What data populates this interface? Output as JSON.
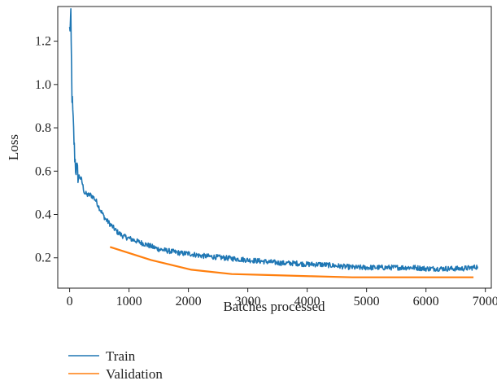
{
  "chart_data": {
    "type": "line",
    "title": "",
    "xlabel": "Batches processed",
    "ylabel": "Loss",
    "xlim": [
      -200,
      7100
    ],
    "ylim": [
      0.06,
      1.36
    ],
    "x_ticks": [
      0,
      1000,
      2000,
      3000,
      4000,
      5000,
      6000,
      7000
    ],
    "y_ticks": [
      0.2,
      0.4,
      0.6,
      0.8,
      1.0,
      1.2
    ],
    "x_tick_labels": [
      "0",
      "1000",
      "2000",
      "3000",
      "4000",
      "5000",
      "6000",
      "7000"
    ],
    "y_tick_labels": [
      "0.2",
      "0.4",
      "0.6",
      "0.8",
      "1.0",
      "1.2"
    ],
    "grid": false,
    "legend": {
      "position": "below-left"
    },
    "series": [
      {
        "name": "Train",
        "color": "#1f77b4",
        "noisy": true,
        "x": [
          0,
          20,
          40,
          60,
          80,
          100,
          150,
          200,
          250,
          300,
          350,
          400,
          450,
          500,
          600,
          700,
          800,
          900,
          1000,
          1100,
          1200,
          1300,
          1400,
          1500,
          1600,
          1700,
          1800,
          1900,
          2000,
          2200,
          2400,
          2600,
          2800,
          3000,
          3200,
          3400,
          3600,
          3800,
          4000,
          4200,
          4400,
          4600,
          4800,
          5000,
          5200,
          5400,
          5600,
          5800,
          6000,
          6200,
          6400,
          6600,
          6800,
          6870
        ],
        "y": [
          1.25,
          1.3,
          0.95,
          0.82,
          0.7,
          0.62,
          0.58,
          0.56,
          0.5,
          0.49,
          0.49,
          0.48,
          0.46,
          0.43,
          0.38,
          0.35,
          0.32,
          0.3,
          0.29,
          0.28,
          0.27,
          0.26,
          0.25,
          0.24,
          0.235,
          0.23,
          0.225,
          0.22,
          0.22,
          0.21,
          0.205,
          0.2,
          0.195,
          0.19,
          0.185,
          0.18,
          0.175,
          0.175,
          0.17,
          0.17,
          0.165,
          0.16,
          0.155,
          0.155,
          0.155,
          0.155,
          0.155,
          0.155,
          0.15,
          0.15,
          0.15,
          0.15,
          0.155,
          0.16
        ]
      },
      {
        "name": "Validation",
        "color": "#ff7f0e",
        "noisy": false,
        "x": [
          680,
          1370,
          2050,
          2730,
          3400,
          4080,
          4760,
          5450,
          6130,
          6800
        ],
        "y": [
          0.25,
          0.19,
          0.145,
          0.125,
          0.12,
          0.115,
          0.11,
          0.11,
          0.11,
          0.11
        ]
      }
    ]
  }
}
